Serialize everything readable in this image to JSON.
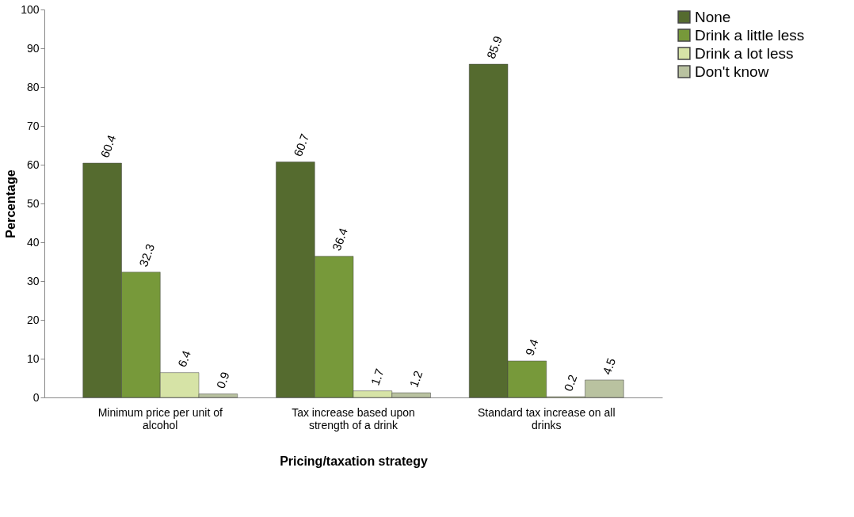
{
  "chart_data": {
    "type": "bar",
    "xlabel": "Pricing/taxation strategy",
    "ylabel": "Percentage",
    "categories": [
      "Minimum price per unit of alcohol",
      "Tax increase based upon strength of a drink",
      "Standard tax increase on all drinks"
    ],
    "series": [
      {
        "name": "None",
        "color": "#556b2f",
        "values": [
          60.4,
          60.7,
          85.9
        ]
      },
      {
        "name": "Drink a little less",
        "color": "#77993a",
        "values": [
          32.3,
          36.4,
          9.4
        ]
      },
      {
        "name": "Drink a lot less",
        "color": "#d6e3a6",
        "values": [
          6.4,
          1.7,
          0.2
        ]
      },
      {
        "name": "Don't know",
        "color": "#b9c2a0",
        "values": [
          0.9,
          1.2,
          4.5
        ]
      }
    ],
    "ylim": [
      0,
      100
    ],
    "yticks": [
      0,
      10,
      20,
      30,
      40,
      50,
      60,
      70,
      80,
      90,
      100
    ],
    "data_labels": true,
    "grid": false,
    "legend": "top right"
  }
}
